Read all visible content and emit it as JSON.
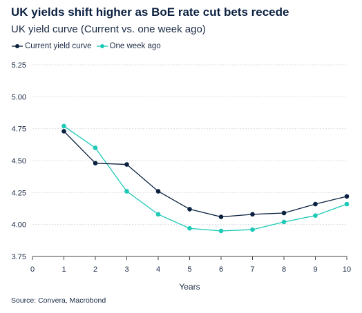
{
  "header": {
    "title": "UK yields shift higher as BoE rate cut bets recede",
    "subtitle": "UK yield curve (Current vs. one week ago)"
  },
  "footer": {
    "source": "Source: Convera, Macrobond"
  },
  "colors": {
    "current": "#0b2140",
    "week_ago": "#1ec9b6",
    "grid": "#d9dde3",
    "axis": "#444444"
  },
  "chart_data": {
    "type": "line",
    "xlabel": "Years",
    "ylabel": "",
    "xlim": [
      0,
      10
    ],
    "ylim": [
      3.75,
      5.25
    ],
    "x_ticks": [
      0,
      1,
      2,
      3,
      4,
      5,
      6,
      7,
      8,
      9,
      10
    ],
    "x_tick_labels": [
      "0",
      "1",
      "2",
      "3",
      "4",
      "5",
      "6",
      "7",
      "8",
      "9",
      "10"
    ],
    "y_ticks": [
      3.75,
      4.0,
      4.25,
      4.5,
      4.75,
      5.0,
      5.25
    ],
    "y_tick_labels": [
      "3.75",
      "4.00",
      "4.25",
      "4.50",
      "4.75",
      "5.00",
      "5.25"
    ],
    "grid": true,
    "legend_position": "top-left",
    "series": [
      {
        "name": "Current yield curve",
        "color": "#0b2140",
        "x": [
          1,
          2,
          3,
          4,
          5,
          6,
          7,
          8,
          9,
          10
        ],
        "values": [
          4.73,
          4.48,
          4.47,
          4.26,
          4.12,
          4.06,
          4.08,
          4.09,
          4.16,
          4.22
        ]
      },
      {
        "name": "One week ago",
        "color": "#1ec9b6",
        "x": [
          1,
          2,
          3,
          4,
          5,
          6,
          7,
          8,
          9,
          10
        ],
        "values": [
          4.77,
          4.6,
          4.26,
          4.08,
          3.97,
          3.95,
          3.96,
          4.02,
          4.07,
          4.16
        ]
      }
    ]
  }
}
